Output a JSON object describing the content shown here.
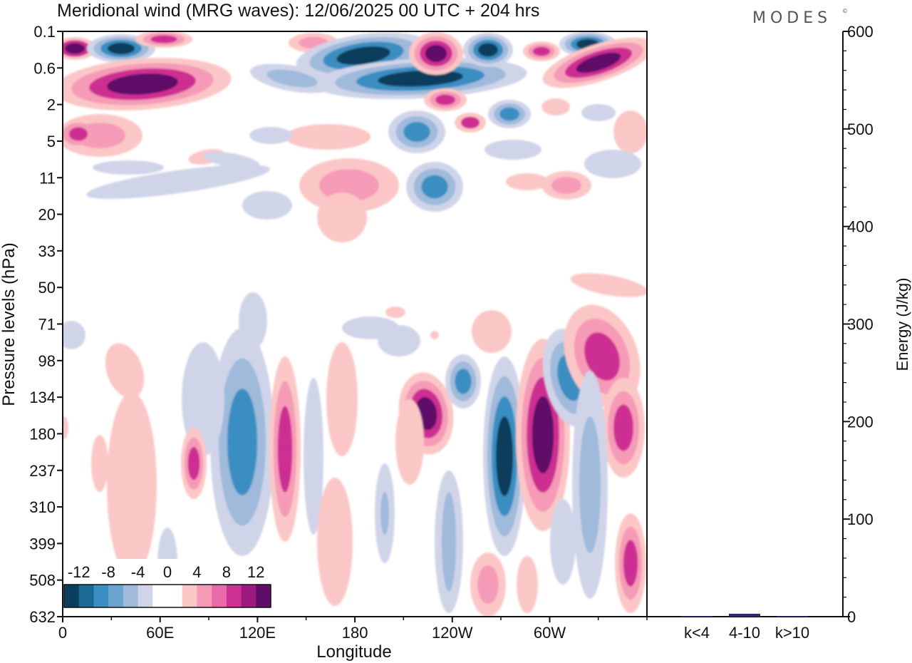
{
  "header": {
    "title": "Meridional wind (MRG waves):  12/06/2025  00 UTC  + 204 hrs",
    "brand": "MODES",
    "brand_mark": "©"
  },
  "chart_data": [
    {
      "type": "heatmap",
      "title": "Meridional wind (MRG waves):  12/06/2025  00 UTC  + 204 hrs",
      "xlabel": "Longitude",
      "ylabel": "Pressure levels (hPa)",
      "x_ticks": [
        "0",
        "60E",
        "120E",
        "180",
        "120W",
        "60W"
      ],
      "y_ticks": [
        "0.1",
        "0.6",
        "2",
        "5",
        "11",
        "20",
        "33",
        "50",
        "71",
        "98",
        "134",
        "180",
        "237",
        "310",
        "399",
        "508",
        "632"
      ],
      "colorbar": {
        "labels": [
          "-12",
          "-8",
          "-4",
          "0",
          "4",
          "8",
          "12"
        ],
        "colors": [
          "#0b3d5c",
          "#1b6a96",
          "#3a8ec2",
          "#6ba5cf",
          "#9fbadb",
          "#d0d4e8",
          "#ffffff",
          "#ffffff",
          "#fbc7c6",
          "#f59bb7",
          "#e86aa7",
          "#cd2f92",
          "#9c1b80",
          "#5e0e68"
        ]
      },
      "colors": {
        "blue_strong": "#0b3d5c",
        "blue_mid": "#3a8ec2",
        "blue_light": "#9fbadb",
        "lavender": "#d0d4e8",
        "pink_light": "#fbc7c6",
        "pink_mid": "#f59bb7",
        "magenta": "#cd2f92",
        "purple": "#5e0e68"
      }
    },
    {
      "type": "bar",
      "ylabel": "Energy (J/kg)",
      "categories": [
        "k<4",
        "4-10",
        "k>10"
      ],
      "values": [
        0.5,
        3,
        0.5
      ],
      "ylim": [
        0,
        600
      ],
      "y_ticks": [
        "0",
        "100",
        "200",
        "300",
        "400",
        "500",
        "600"
      ],
      "bar_color": "#2a2a6a"
    }
  ]
}
